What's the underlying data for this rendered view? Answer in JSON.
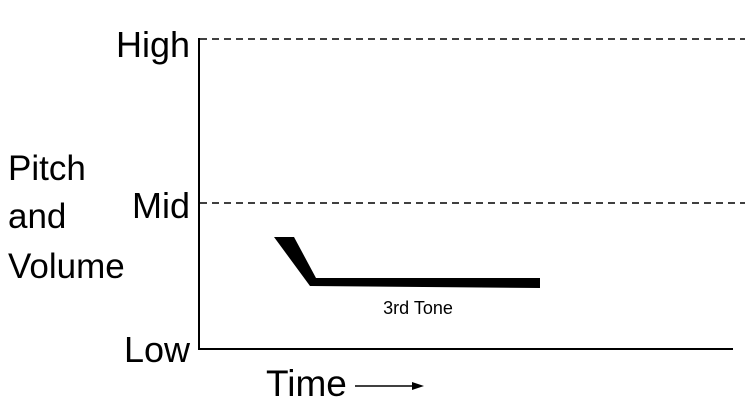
{
  "levels": {
    "high": "High",
    "mid": "Mid",
    "low": "Low"
  },
  "y_axis_label": [
    "Pitch",
    "and",
    "Volume"
  ],
  "x_axis_label": "Time",
  "tone": {
    "label": "3rd Tone",
    "contour": "falling then level"
  },
  "colors": {
    "ink": "#000000",
    "background": "#ffffff"
  }
}
